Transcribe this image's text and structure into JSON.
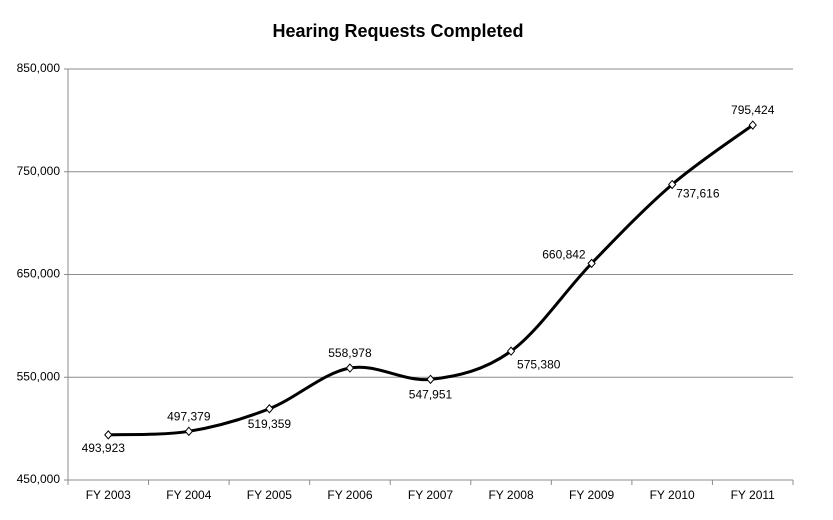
{
  "chart_data": {
    "type": "line",
    "title": "Hearing Requests Completed",
    "categories": [
      "FY 2003",
      "FY 2004",
      "FY 2005",
      "FY 2006",
      "FY 2007",
      "FY 2008",
      "FY 2009",
      "FY 2010",
      "FY 2011"
    ],
    "values": [
      493923,
      497379,
      519359,
      558978,
      547951,
      575380,
      660842,
      737616,
      795424
    ],
    "value_labels": [
      "493,923",
      "497,379",
      "519,359",
      "558,978",
      "547,951",
      "575,380",
      "660,842",
      "737,616",
      "795,424"
    ],
    "color": "#000000",
    "ylim": [
      450000,
      850000
    ],
    "yticks": [
      {
        "value": 450000,
        "label": "450,000"
      },
      {
        "value": 550000,
        "label": "550,000"
      },
      {
        "value": 650000,
        "label": "650,000"
      },
      {
        "value": 750000,
        "label": "750,000"
      },
      {
        "value": 850000,
        "label": "850,000"
      }
    ],
    "grid": true
  }
}
